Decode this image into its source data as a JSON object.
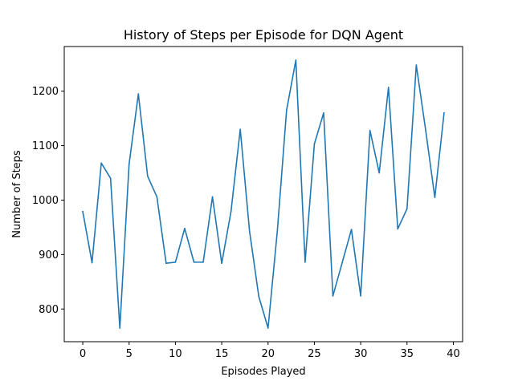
{
  "chart_data": {
    "type": "line",
    "title": "History of Steps per Episode for DQN Agent",
    "xlabel": "Episodes Played",
    "ylabel": "Number of Steps",
    "xlim": [
      -2,
      41
    ],
    "ylim": [
      740,
      1282
    ],
    "xticks": [
      0,
      5,
      10,
      15,
      20,
      25,
      30,
      35,
      40
    ],
    "yticks": [
      800,
      900,
      1000,
      1100,
      1200
    ],
    "grid": false,
    "series": [
      {
        "color": "#1f77b4",
        "x": [
          0,
          1,
          2,
          3,
          4,
          5,
          6,
          7,
          8,
          9,
          10,
          11,
          12,
          13,
          14,
          15,
          16,
          17,
          18,
          19,
          20,
          21,
          22,
          23,
          24,
          25,
          26,
          27,
          28,
          29,
          30,
          31,
          32,
          33,
          34,
          35,
          36,
          37,
          38,
          39
        ],
        "values": [
          979,
          885,
          1068,
          1040,
          765,
          1066,
          1195,
          1044,
          1006,
          884,
          886,
          948,
          886,
          886,
          1006,
          884,
          979,
          1130,
          943,
          823,
          765,
          943,
          1165,
          1257,
          886,
          1103,
          1160,
          824,
          885,
          946,
          824,
          1128,
          1050,
          1207,
          947,
          984,
          1248,
          1130,
          1005,
          1160
        ]
      }
    ]
  }
}
